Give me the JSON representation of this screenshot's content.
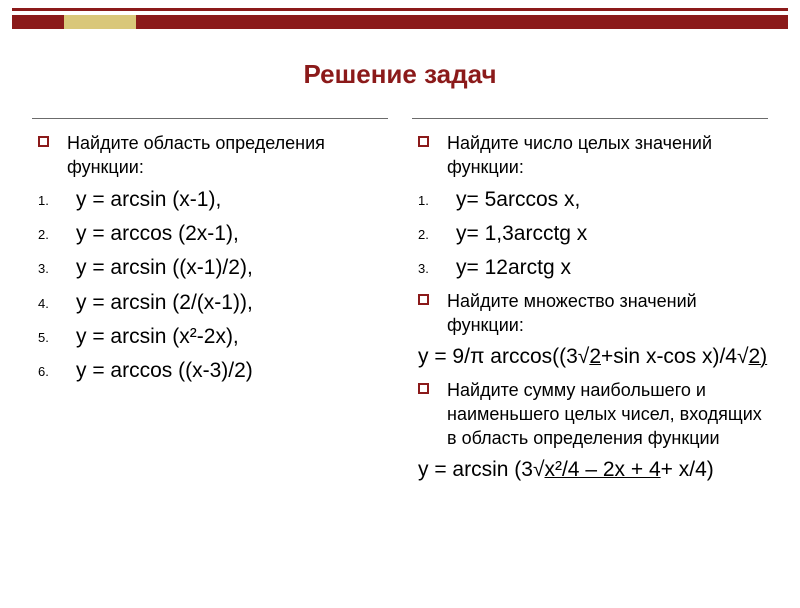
{
  "colors": {
    "accent": "#8b1a1a",
    "accent_gold": "#d9c77a",
    "line": "#6b6b6b",
    "bg": "#ffffff",
    "text": "#000000"
  },
  "title": "Решение задач",
  "left": {
    "prompt": "Найдите область определения функции:",
    "items": [
      "y = arcsin (x-1),",
      "y = arccos (2x-1),",
      "y = arcsin ((x-1)/2),",
      "y = arcsin (2/(x-1)),",
      "y = arcsin (x²-2x),",
      "y = arccos ((x-3)/2)"
    ]
  },
  "right": {
    "prompt1": "Найдите число целых значений функции:",
    "nums": [
      "y= 5arccos x,",
      "y= 1,3arcctg x",
      "y= 12arctg x"
    ],
    "prompt2": "Найдите множество значений функции:",
    "eq2_a": "y = 9/π arccos((3√",
    "eq2_b": "2 ",
    "eq2_c": "+sin x-cos x)/4√",
    "eq2_d": "2)",
    "prompt3": "Найдите сумму наибольшего и наименьшего целых чисел, входящих в область определения функции",
    "eq3_a": "y = arcsin (3√",
    "eq3_b": "x²/4 – 2x + 4 ",
    "eq3_c": "+ x/4)"
  }
}
